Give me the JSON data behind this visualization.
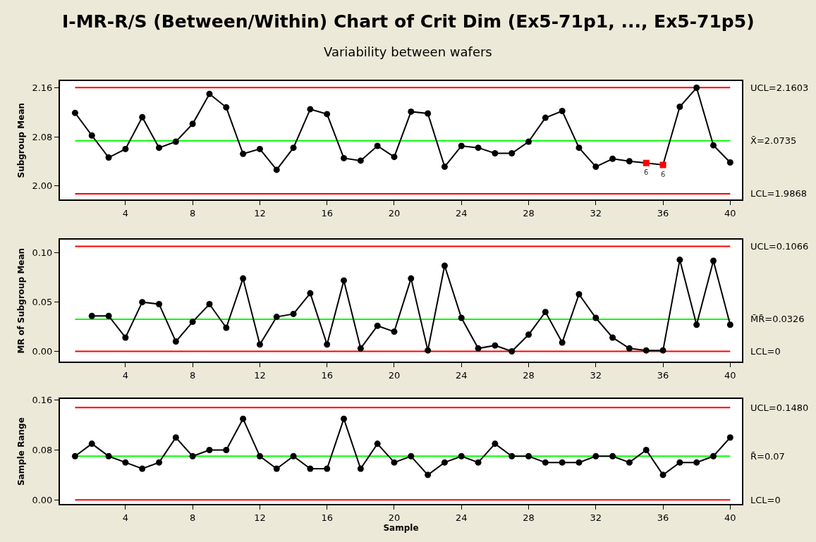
{
  "chart_data": [
    {
      "type": "line",
      "title": "I-MR-R/S (Between/Within) Chart of Crit Dim (Ex5-71p1, ..., Ex5-71p5)",
      "subtitle": "Variability between wafers",
      "ylabel": "Subgroup Mean",
      "x": [
        1,
        2,
        3,
        4,
        5,
        6,
        7,
        8,
        9,
        10,
        11,
        12,
        13,
        14,
        15,
        16,
        17,
        18,
        19,
        20,
        21,
        22,
        23,
        24,
        25,
        26,
        27,
        28,
        29,
        30,
        31,
        32,
        33,
        34,
        35,
        36,
        37,
        38,
        39,
        40
      ],
      "series": [
        {
          "color": "#000000",
          "marker": "circle",
          "colors": [
            "#000000",
            "#000000",
            "#000000",
            "#000000",
            "#000000",
            "#000000",
            "#000000",
            "#000000",
            "#000000",
            "#000000",
            "#000000",
            "#000000",
            "#000000",
            "#000000",
            "#000000",
            "#000000",
            "#000000",
            "#000000",
            "#000000",
            "#000000",
            "#000000",
            "#000000",
            "#000000",
            "#000000",
            "#000000",
            "#000000",
            "#000000",
            "#000000",
            "#000000",
            "#000000",
            "#000000",
            "#000000",
            "#000000",
            "#000000",
            "#ff0000",
            "#ff0000",
            "#000000",
            "#000000",
            "#000000",
            "#000000"
          ],
          "values": [
            2.119,
            2.082,
            2.046,
            2.06,
            2.112,
            2.062,
            2.072,
            2.101,
            2.15,
            2.128,
            2.052,
            2.06,
            2.026,
            2.062,
            2.125,
            2.117,
            2.045,
            2.041,
            2.065,
            2.047,
            2.121,
            2.118,
            2.031,
            2.065,
            2.062,
            2.053,
            2.053,
            2.072,
            2.111,
            2.122,
            2.062,
            2.031,
            2.044,
            2.04,
            2.037,
            2.034,
            2.129,
            2.16,
            2.066,
            2.038
          ]
        }
      ],
      "xlim": [
        0.1,
        40.7
      ],
      "xticks": [
        4,
        8,
        12,
        16,
        20,
        24,
        28,
        32,
        36,
        40
      ],
      "ylim": [
        1.977,
        2.171
      ],
      "yticks": [
        {
          "value": 2.0,
          "label": "2.00"
        },
        2.08,
        2.16
      ],
      "ref_lines": [
        {
          "axis": "y",
          "value": 2.1603,
          "label": "UCL=2.1603",
          "color": "#ff0000"
        },
        {
          "axis": "y",
          "value": 2.0735,
          "label": "X̄=2.0735",
          "color": "#00ff00"
        },
        {
          "axis": "y",
          "value": 1.9868,
          "label": "LCL=1.9868",
          "color": "#ff0000"
        }
      ],
      "annotations": [
        {
          "text": "6",
          "x": 35,
          "y": 2.037
        },
        {
          "text": "6",
          "x": 36,
          "y": 2.034
        }
      ],
      "grid": false,
      "line_style": "solid"
    },
    {
      "type": "line",
      "ylabel": "MR of Subgroup Mean",
      "series": [
        {
          "color": "#000000",
          "marker": "circle",
          "x": [
            2,
            3,
            4,
            5,
            6,
            7,
            8,
            9,
            10,
            11,
            12,
            13,
            14,
            15,
            16,
            17,
            18,
            19,
            20,
            21,
            22,
            23,
            24,
            25,
            26,
            27,
            28,
            29,
            30,
            31,
            32,
            33,
            34,
            35,
            36,
            37,
            38,
            39,
            40
          ],
          "values": [
            0.036,
            0.036,
            0.014,
            0.05,
            0.048,
            0.01,
            0.03,
            0.048,
            0.024,
            0.074,
            0.007,
            0.035,
            0.038,
            0.059,
            0.007,
            0.072,
            0.003,
            0.026,
            0.02,
            0.074,
            0.001,
            0.087,
            0.034,
            0.003,
            0.006,
            0.0,
            0.017,
            0.04,
            0.009,
            0.058,
            0.034,
            0.014,
            0.003,
            0.001,
            0.001,
            0.093,
            0.027,
            0.092,
            0.027
          ]
        }
      ],
      "xlim": [
        0.1,
        40.7
      ],
      "xticks": [
        4,
        8,
        12,
        16,
        20,
        24,
        28,
        32,
        36,
        40
      ],
      "ylim": [
        -0.0106,
        0.1135
      ],
      "yticks": [
        {
          "value": 0,
          "label": "0.00"
        },
        0.05,
        {
          "value": 0.1,
          "label": "0.10"
        }
      ],
      "ref_lines": [
        {
          "axis": "y",
          "value": 0.1066,
          "label": "UCL=0.1066",
          "color": "#ff0000"
        },
        {
          "axis": "y",
          "value": 0.0326,
          "label": "M̄R̄=0.0326",
          "color": "#00ff00"
        },
        {
          "axis": "y",
          "value": 0,
          "label": "LCL=0",
          "color": "#ff0000"
        }
      ],
      "grid": false,
      "line_style": "solid"
    },
    {
      "type": "line",
      "ylabel": "Sample Range",
      "xlabel": "Sample",
      "x": [
        1,
        2,
        3,
        4,
        5,
        6,
        7,
        8,
        9,
        10,
        11,
        12,
        13,
        14,
        15,
        16,
        17,
        18,
        19,
        20,
        21,
        22,
        23,
        24,
        25,
        26,
        27,
        28,
        29,
        30,
        31,
        32,
        33,
        34,
        35,
        36,
        37,
        38,
        39,
        40
      ],
      "series": [
        {
          "color": "#000000",
          "marker": "circle",
          "values": [
            0.07,
            0.09,
            0.07,
            0.06,
            0.05,
            0.06,
            0.1,
            0.07,
            0.08,
            0.08,
            0.13,
            0.07,
            0.05,
            0.07,
            0.05,
            0.05,
            0.13,
            0.05,
            0.09,
            0.06,
            0.07,
            0.04,
            0.06,
            0.07,
            0.06,
            0.09,
            0.07,
            0.07,
            0.06,
            0.06,
            0.06,
            0.07,
            0.07,
            0.06,
            0.08,
            0.04,
            0.06,
            0.06,
            0.07,
            0.1
          ]
        }
      ],
      "xlim": [
        0.1,
        40.7
      ],
      "xticks": [
        4,
        8,
        12,
        16,
        20,
        24,
        28,
        32,
        36,
        40
      ],
      "ylim": [
        -0.007,
        0.162
      ],
      "yticks": [
        {
          "value": 0,
          "label": "0.00"
        },
        0.08,
        0.16
      ],
      "ref_lines": [
        {
          "axis": "y",
          "value": 0.148,
          "label": "UCL=0.1480",
          "color": "#ff0000"
        },
        {
          "axis": "y",
          "value": 0.07,
          "label": "R̄=0.07",
          "color": "#00ff00"
        },
        {
          "axis": "y",
          "value": 0,
          "label": "LCL=0",
          "color": "#ff0000"
        }
      ],
      "grid": false,
      "line_style": "solid"
    }
  ]
}
